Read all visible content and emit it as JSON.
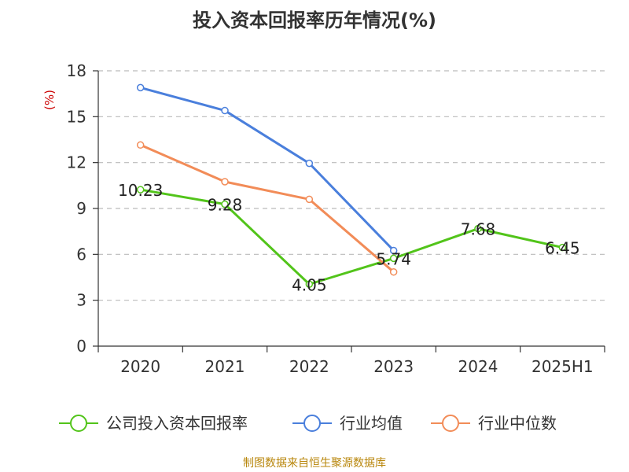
{
  "colors": {
    "company": "#52c41a",
    "industry_avg": "#4a7fdc",
    "industry_median": "#f28c58",
    "grid": "#bbbbbb",
    "axis": "#333333",
    "source": "#b8860b",
    "unit": "#cc0000"
  },
  "source_note": "制图数据来自恒生聚源数据库",
  "chart_data": {
    "type": "line",
    "title": "投入资本回报率历年情况(%)",
    "ylabel": "(%)",
    "xlabel": "",
    "categories": [
      "2020",
      "2021",
      "2022",
      "2023",
      "2024",
      "2025H1"
    ],
    "ylim": [
      0,
      18
    ],
    "yticks": [
      0,
      3,
      6,
      9,
      12,
      15,
      18
    ],
    "grid": true,
    "legend_position": "bottom",
    "series": [
      {
        "name": "公司投入资本回报率",
        "color_key": "company",
        "values": [
          10.23,
          9.28,
          4.05,
          5.74,
          7.68,
          6.45
        ],
        "labels": [
          "10.23",
          "9.28",
          "4.05",
          "5.74",
          "7.68",
          "6.45"
        ]
      },
      {
        "name": "行业均值",
        "color_key": "industry_avg",
        "values": [
          16.9,
          15.4,
          11.95,
          6.25,
          null,
          null
        ]
      },
      {
        "name": "行业中位数",
        "color_key": "industry_median",
        "values": [
          13.15,
          10.75,
          9.6,
          4.85,
          null,
          null
        ]
      }
    ]
  }
}
